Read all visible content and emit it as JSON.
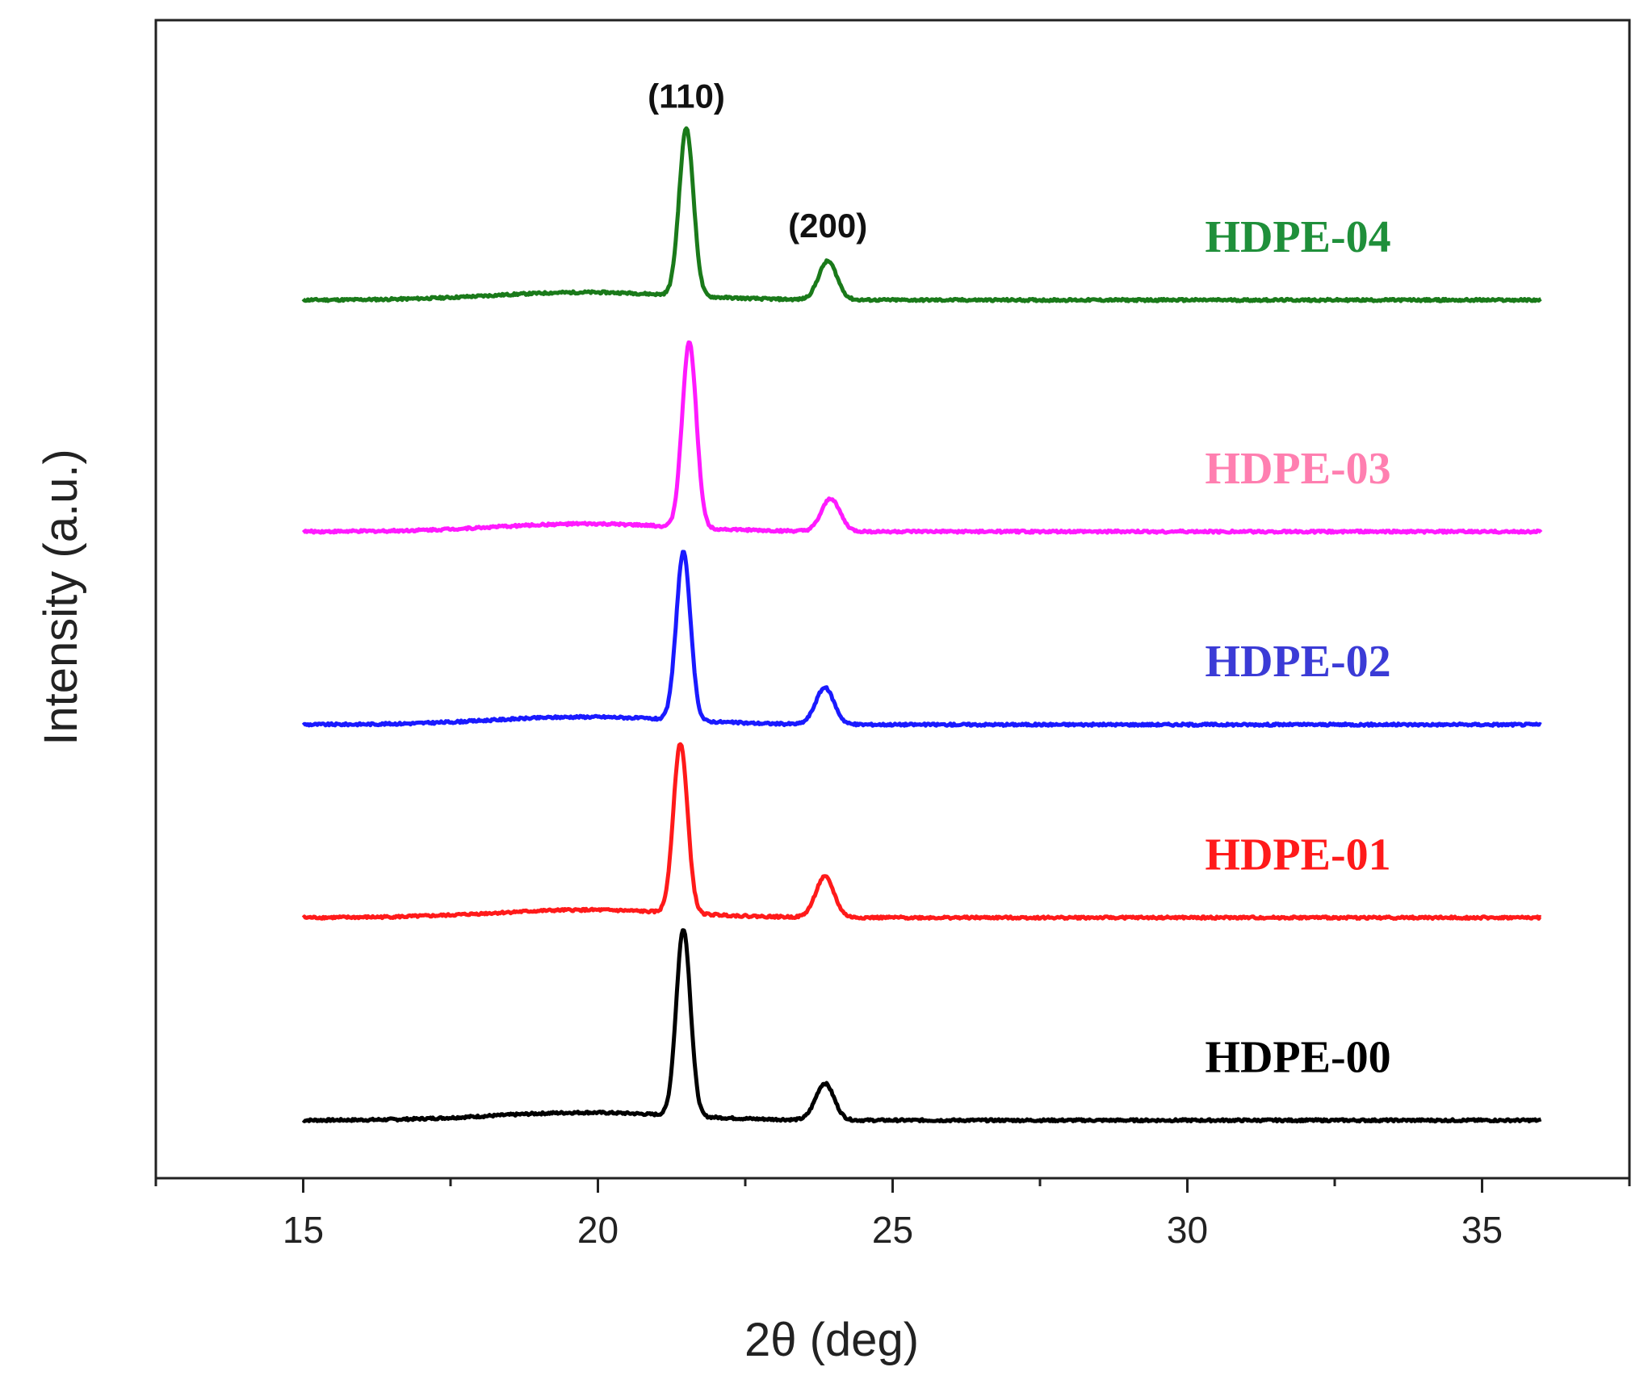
{
  "chart_data": {
    "type": "line",
    "title": "",
    "xlabel": "2θ (deg)",
    "ylabel": "Intensity (a.u.)",
    "xlim": [
      12.5,
      37.5
    ],
    "ylim": [
      0,
      6
    ],
    "x_ticks": [
      15,
      20,
      25,
      30,
      35
    ],
    "x_tick_labels": [
      "15",
      "20",
      "25",
      "30",
      "35"
    ],
    "y_ticks_shown": false,
    "grid": false,
    "peak_annotations": [
      {
        "label": "(110)",
        "x": 21.5
      },
      {
        "label": "(200)",
        "x": 23.9
      }
    ],
    "series": [
      {
        "name": "HDPE-00",
        "color": "#000000",
        "label_color": "#000000",
        "offset": 0.3,
        "peak1": {
          "x": 21.45,
          "height": 0.97
        },
        "peak2": {
          "x": 23.85,
          "height": 0.19
        }
      },
      {
        "name": "HDPE-01",
        "color": "#ff1a1a",
        "label_color": "#ff1a1a",
        "offset": 1.35,
        "peak1": {
          "x": 21.4,
          "height": 0.88
        },
        "peak2": {
          "x": 23.85,
          "height": 0.21
        }
      },
      {
        "name": "HDPE-02",
        "color": "#1a1aff",
        "label_color": "#3b3bd6",
        "offset": 2.35,
        "peak1": {
          "x": 21.45,
          "height": 0.87
        },
        "peak2": {
          "x": 23.85,
          "height": 0.19
        }
      },
      {
        "name": "HDPE-03",
        "color": "#ff1aff",
        "label_color": "#ff7fb0",
        "offset": 3.35,
        "peak1": {
          "x": 21.55,
          "height": 0.96
        },
        "peak2": {
          "x": 23.95,
          "height": 0.17
        }
      },
      {
        "name": "HDPE-04",
        "color": "#1a7a1a",
        "label_color": "#1f8f3a",
        "offset": 4.55,
        "peak1": {
          "x": 21.5,
          "height": 0.87
        },
        "peak2": {
          "x": 23.9,
          "height": 0.2
        }
      }
    ],
    "x_range": [
      15,
      36
    ]
  }
}
